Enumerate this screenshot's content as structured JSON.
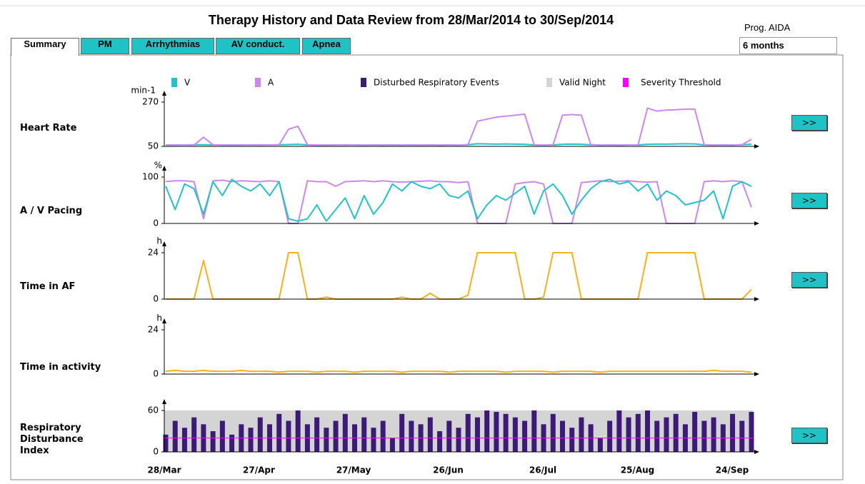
{
  "header": {
    "title": "Therapy History and Data Review from 28/Mar/2014 to 30/Sep/2014"
  },
  "tabs": [
    "Summary",
    "PM",
    "Arrhythmias",
    "AV conduct.",
    "Apnea"
  ],
  "program": {
    "label": "Prog. AIDA",
    "period": "6 months"
  },
  "button_label": ">>",
  "legend": [
    {
      "name": "V",
      "color": "#22c3c8"
    },
    {
      "name": "A",
      "color": "#cc88ee"
    },
    {
      "name": "Disturbed Respiratory Events",
      "color": "#3d1a78"
    },
    {
      "name": "Valid Night",
      "color": "#d4d4d4"
    },
    {
      "name": "Severity Threshold",
      "color": "#ff00ff"
    }
  ],
  "x_labels": [
    "28/Mar",
    "27/Apr",
    "27/May",
    "26/Jun",
    "26/Jul",
    "25/Aug",
    "24/Sep"
  ],
  "panels": [
    {
      "label": "Heart Rate",
      "unit": "min-1",
      "ylim": [
        50,
        270
      ],
      "yticks": [
        50,
        270
      ],
      "button": true,
      "series": [
        {
          "color": "#22c3c8",
          "values": [
            56,
            57,
            57,
            58,
            58,
            57,
            57,
            56,
            57,
            57,
            57,
            57,
            58,
            59,
            60,
            57,
            56,
            56,
            57,
            57,
            57,
            56,
            57,
            56,
            57,
            56,
            57,
            56,
            57,
            56,
            57,
            56,
            58,
            63,
            62,
            61,
            62,
            61,
            60,
            57,
            56,
            57,
            60,
            61,
            60,
            58,
            56,
            57,
            56,
            57,
            57,
            60,
            61,
            61,
            62,
            63,
            62,
            57,
            56,
            57,
            56,
            58,
            60
          ]
        },
        {
          "color": "#cc88ee",
          "values": [
            57,
            56,
            57,
            56,
            95,
            58,
            56,
            57,
            56,
            57,
            56,
            57,
            57,
            135,
            150,
            58,
            57,
            56,
            57,
            56,
            57,
            56,
            57,
            56,
            57,
            56,
            57,
            56,
            57,
            56,
            57,
            56,
            58,
            175,
            185,
            195,
            200,
            205,
            210,
            57,
            56,
            57,
            205,
            208,
            205,
            58,
            56,
            57,
            56,
            57,
            57,
            240,
            225,
            230,
            232,
            235,
            235,
            57,
            56,
            57,
            56,
            58,
            85
          ]
        }
      ]
    },
    {
      "label": "A / V Pacing",
      "unit": "%",
      "ylim": [
        0,
        100
      ],
      "yticks": [
        0,
        100
      ],
      "button": true,
      "series": [
        {
          "color": "#cc88ee",
          "values": [
            90,
            92,
            92,
            90,
            10,
            92,
            93,
            90,
            92,
            91,
            90,
            92,
            90,
            0,
            0,
            92,
            90,
            90,
            80,
            90,
            91,
            92,
            90,
            92,
            90,
            89,
            90,
            91,
            92,
            90,
            90,
            88,
            90,
            0,
            0,
            0,
            0,
            85,
            88,
            90,
            85,
            0,
            0,
            0,
            88,
            90,
            92,
            90,
            91,
            92,
            90,
            89,
            90,
            0,
            0,
            0,
            0,
            90,
            92,
            90,
            92,
            90,
            35
          ]
        },
        {
          "color": "#22c3c8",
          "values": [
            80,
            30,
            85,
            75,
            20,
            90,
            60,
            95,
            80,
            70,
            85,
            60,
            90,
            10,
            5,
            10,
            40,
            5,
            30,
            55,
            10,
            60,
            20,
            45,
            85,
            70,
            90,
            80,
            75,
            85,
            60,
            55,
            70,
            10,
            40,
            60,
            50,
            65,
            80,
            20,
            70,
            85,
            60,
            20,
            50,
            75,
            90,
            95,
            85,
            90,
            70,
            85,
            50,
            70,
            60,
            40,
            45,
            50,
            70,
            10,
            80,
            90,
            80
          ]
        }
      ]
    },
    {
      "label": "Time in AF",
      "unit": "h",
      "ylim": [
        0,
        24
      ],
      "yticks": [
        0,
        24
      ],
      "button": true,
      "series": [
        {
          "color": "#f5b120",
          "values": [
            0,
            0,
            0,
            0,
            20,
            0,
            0,
            0,
            0,
            0,
            0,
            0,
            0,
            24,
            24,
            0,
            0,
            1,
            0,
            0,
            0,
            0,
            0,
            0,
            0,
            1,
            0,
            0,
            3,
            0,
            0,
            0,
            2,
            24,
            24,
            24,
            24,
            24,
            0,
            0,
            1,
            24,
            24,
            24,
            0,
            0,
            0,
            0,
            0,
            0,
            0,
            24,
            24,
            24,
            24,
            24,
            24,
            0,
            0,
            0,
            0,
            0,
            5
          ]
        }
      ]
    },
    {
      "label": "Time in activity",
      "unit": "h",
      "ylim": [
        0,
        24
      ],
      "yticks": [
        0,
        24
      ],
      "button": false,
      "series": [
        {
          "color": "#f5b120",
          "values": [
            1.5,
            2,
            1.5,
            1.5,
            2,
            1.5,
            1.5,
            1.5,
            2,
            1.5,
            1.5,
            1.5,
            1,
            1.5,
            1.5,
            1.5,
            1,
            1.5,
            1.5,
            1.5,
            1,
            1.5,
            1.5,
            1.5,
            1.5,
            1,
            1.5,
            1.5,
            1.5,
            1.5,
            1,
            1.5,
            1.5,
            1.5,
            1.5,
            1.5,
            1,
            1.5,
            1.5,
            1.5,
            1.5,
            1,
            1.5,
            1.5,
            1.5,
            1.5,
            1,
            1.5,
            1.5,
            1.5,
            1.5,
            1.5,
            1.5,
            1.5,
            1.5,
            1.5,
            1.5,
            1.5,
            2,
            1.5,
            1.5,
            1.5,
            1
          ]
        }
      ]
    },
    {
      "label": "Respiratory Disturbance Index",
      "ylim": [
        0,
        60
      ],
      "yticks": [
        0,
        60
      ],
      "button": true,
      "valid_night": {
        "color": "#d4d4d4",
        "value": 60
      },
      "threshold": {
        "color": "#ff00ff",
        "value": 20
      },
      "bars": {
        "color": "#3d1a78",
        "values": [
          25,
          45,
          35,
          50,
          40,
          30,
          45,
          25,
          40,
          35,
          50,
          40,
          55,
          45,
          60,
          40,
          50,
          35,
          45,
          55,
          40,
          50,
          35,
          45,
          20,
          55,
          45,
          40,
          50,
          30,
          45,
          35,
          55,
          50,
          60,
          58,
          55,
          50,
          45,
          60,
          40,
          55,
          45,
          35,
          50,
          40,
          20,
          45,
          60,
          50,
          55,
          60,
          45,
          50,
          55,
          40,
          58,
          45,
          50,
          40,
          55,
          45,
          58
        ]
      }
    }
  ]
}
